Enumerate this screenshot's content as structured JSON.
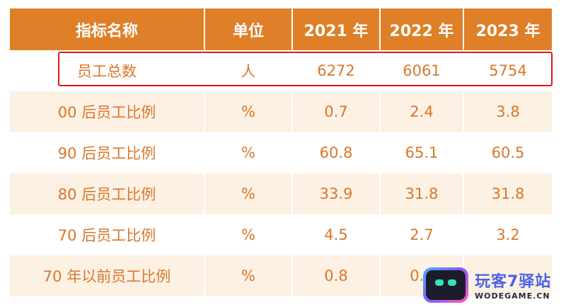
{
  "table": {
    "headers": [
      "指标名称",
      "单位",
      "2021 年",
      "2022 年",
      "2023 年"
    ],
    "rows": [
      [
        "员工总数",
        "人",
        "6272",
        "6061",
        "5754"
      ],
      [
        "00 后员工比例",
        "%",
        "0.7",
        "2.4",
        "3.8"
      ],
      [
        "90 后员工比例",
        "%",
        "60.8",
        "65.1",
        "60.5"
      ],
      [
        "80 后员工比例",
        "%",
        "33.9",
        "31.8",
        "31.8"
      ],
      [
        "70 后员工比例",
        "%",
        "4.5",
        "2.7",
        "3.2"
      ],
      [
        "70 年以前员工比例",
        "%",
        "0.8",
        "0.4",
        ""
      ]
    ]
  },
  "colors": {
    "header_bg": "#df7f27",
    "text": "#d9772a",
    "shade": "#fdf1e4",
    "highlight": "#e3151b"
  },
  "watermark": {
    "title": "玩客7驿站",
    "subtitle": "WODEGAME.CN",
    "icon": "robot-logo-icon"
  }
}
